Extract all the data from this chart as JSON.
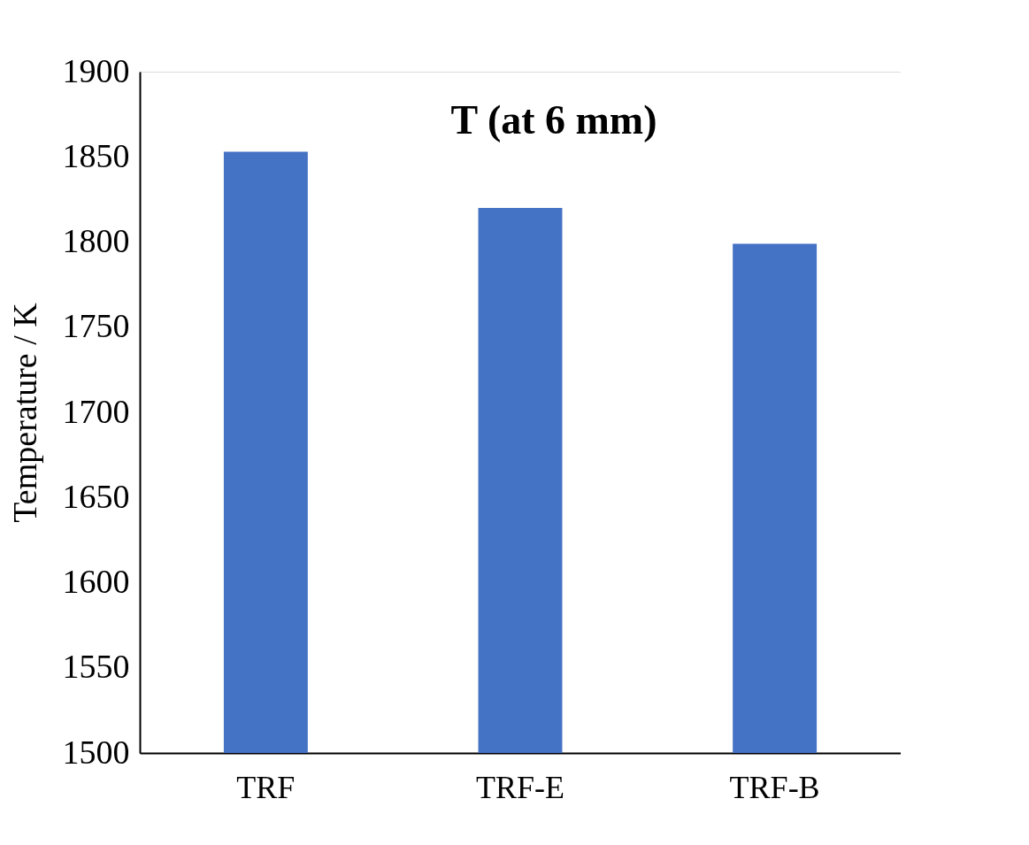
{
  "chart_data": {
    "type": "bar",
    "title": "T (at 6 mm)",
    "ylabel": "Temperature / K",
    "categories": [
      "TRF",
      "TRF-E",
      "TRF-B"
    ],
    "values": [
      1853,
      1820,
      1799
    ],
    "color": "#4472c4",
    "ylim": [
      1500,
      1900
    ],
    "yticks": [
      1500,
      1550,
      1600,
      1650,
      1700,
      1750,
      1800,
      1850,
      1900
    ],
    "grid": false
  }
}
